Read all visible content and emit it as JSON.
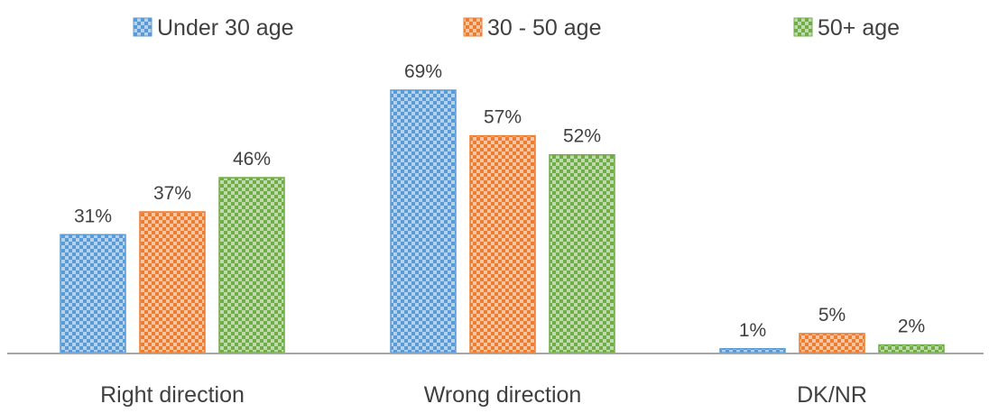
{
  "chart_data": {
    "type": "bar",
    "title": "",
    "xlabel": "",
    "ylabel": "",
    "categories": [
      "Right direction",
      "Wrong direction",
      "DK/NR"
    ],
    "series": [
      {
        "name": "Under 30 age",
        "values": [
          31,
          69,
          1
        ],
        "labels": [
          "31%",
          "69%",
          "1%"
        ],
        "color": "#5b9bd5"
      },
      {
        "name": "30 - 50 age",
        "values": [
          37,
          57,
          5
        ],
        "labels": [
          "37%",
          "57%",
          "5%"
        ],
        "color": "#ed7d31"
      },
      {
        "name": "50+ age",
        "values": [
          46,
          52,
          2
        ],
        "labels": [
          "46%",
          "52%",
          "2%"
        ],
        "color": "#70ad47"
      }
    ],
    "ylim": [
      0,
      72
    ],
    "grid": false,
    "legend": "top-center",
    "pattern": "dotted"
  }
}
